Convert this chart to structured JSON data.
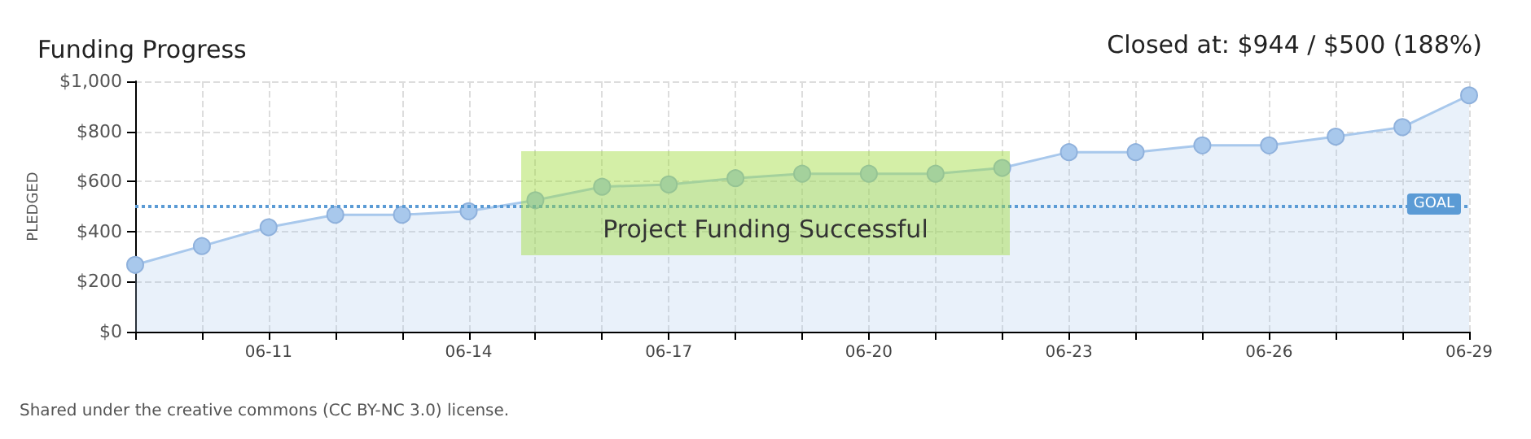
{
  "chart_data": {
    "type": "area",
    "title": "Funding Progress",
    "ylabel": "PLEDGED",
    "annotations": [
      "Closed at: $944 / $500 (188%)",
      "Project Funding Successful",
      "Shared under the creative commons (CC BY-NC 3.0) license."
    ],
    "categories": [
      null,
      null,
      "06-11",
      null,
      null,
      "06-14",
      null,
      null,
      "06-17",
      null,
      null,
      "06-20",
      null,
      null,
      "06-23",
      null,
      null,
      "06-26",
      null,
      null,
      "06-29"
    ],
    "series": [
      {
        "color": "#a8c8ec",
        "values": [
          267,
          342,
          417,
          467,
          467,
          481,
          525,
          579,
          588,
          613,
          631,
          631,
          631,
          654,
          717,
          717,
          744,
          744,
          779,
          817,
          944
        ]
      }
    ],
    "ylim": [
      0,
      1000
    ],
    "yticks": [
      {
        "value": 0,
        "label": "$0"
      },
      {
        "value": 200,
        "label": "$200"
      },
      {
        "value": 400,
        "label": "$400"
      },
      {
        "value": 600,
        "label": "$600"
      },
      {
        "value": 800,
        "label": "$800"
      },
      {
        "value": 1000,
        "label": "$1,000"
      }
    ],
    "ref_lines": [
      {
        "axis": "y",
        "value": 500,
        "label": "GOAL",
        "color": "#5b9bd5",
        "line_style": "dotted"
      }
    ],
    "grid": true,
    "marker": "circle",
    "line_style": "solid"
  }
}
